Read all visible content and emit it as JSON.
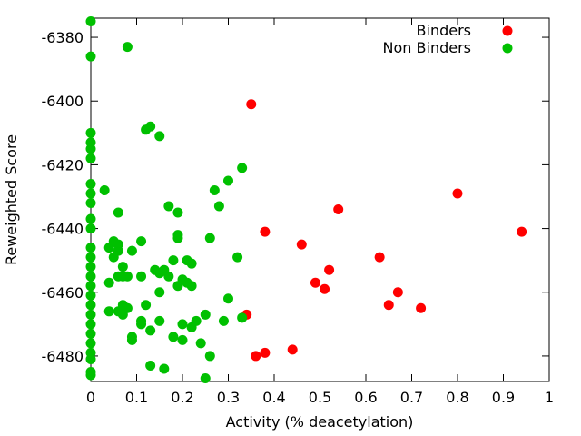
{
  "chart_data": {
    "type": "scatter",
    "xlabel": "Activity (% deacetylation)",
    "ylabel": "Reweighted Score",
    "xlim": [
      0,
      1
    ],
    "ylim": [
      -6488,
      -6374
    ],
    "xticks": [
      "0",
      "0.1",
      "0.2",
      "0.3",
      "0.4",
      "0.5",
      "0.6",
      "0.7",
      "0.8",
      "0.9",
      "1"
    ],
    "yticks": [
      "-6380",
      "-6400",
      "-6420",
      "-6440",
      "-6460",
      "-6480"
    ],
    "grid": false,
    "legend_position": "top-right",
    "series": [
      {
        "name": "Binders",
        "color": "#ff0000",
        "points": [
          [
            0.35,
            -6401
          ],
          [
            0.38,
            -6441
          ],
          [
            0.46,
            -6445
          ],
          [
            0.54,
            -6434
          ],
          [
            0.8,
            -6429
          ],
          [
            0.94,
            -6441
          ],
          [
            0.63,
            -6449
          ],
          [
            0.52,
            -6453
          ],
          [
            0.49,
            -6457
          ],
          [
            0.51,
            -6459
          ],
          [
            0.67,
            -6460
          ],
          [
            0.65,
            -6464
          ],
          [
            0.72,
            -6465
          ],
          [
            0.34,
            -6467
          ],
          [
            0.36,
            -6480
          ],
          [
            0.38,
            -6479
          ],
          [
            0.44,
            -6478
          ]
        ]
      },
      {
        "name": "Non Binders",
        "color": "#00c000",
        "points": [
          [
            0,
            -6375
          ],
          [
            0,
            -6386
          ],
          [
            0,
            -6410
          ],
          [
            0,
            -6413
          ],
          [
            0,
            -6415
          ],
          [
            0,
            -6418
          ],
          [
            0,
            -6426
          ],
          [
            0,
            -6429
          ],
          [
            0,
            -6432
          ],
          [
            0,
            -6437
          ],
          [
            0,
            -6440
          ],
          [
            0,
            -6446
          ],
          [
            0,
            -6449
          ],
          [
            0,
            -6452
          ],
          [
            0,
            -6455
          ],
          [
            0,
            -6458
          ],
          [
            0,
            -6461
          ],
          [
            0,
            -6464
          ],
          [
            0,
            -6467
          ],
          [
            0,
            -6470
          ],
          [
            0,
            -6473
          ],
          [
            0,
            -6476
          ],
          [
            0,
            -6479
          ],
          [
            0,
            -6481
          ],
          [
            0,
            -6485
          ],
          [
            0,
            -6486
          ],
          [
            0.08,
            -6383
          ],
          [
            0.12,
            -6409
          ],
          [
            0.13,
            -6408
          ],
          [
            0.15,
            -6411
          ],
          [
            0.33,
            -6421
          ],
          [
            0.3,
            -6425
          ],
          [
            0.28,
            -6433
          ],
          [
            0.27,
            -6428
          ],
          [
            0.17,
            -6433
          ],
          [
            0.19,
            -6435
          ],
          [
            0.06,
            -6435
          ],
          [
            0.03,
            -6428
          ],
          [
            0.19,
            -6442
          ],
          [
            0.19,
            -6443
          ],
          [
            0.26,
            -6443
          ],
          [
            0.11,
            -6444
          ],
          [
            0.06,
            -6445
          ],
          [
            0.05,
            -6444
          ],
          [
            0.04,
            -6446
          ],
          [
            0.06,
            -6447
          ],
          [
            0.09,
            -6447
          ],
          [
            0.05,
            -6449
          ],
          [
            0.32,
            -6449
          ],
          [
            0.18,
            -6450
          ],
          [
            0.21,
            -6450
          ],
          [
            0.22,
            -6451
          ],
          [
            0.14,
            -6453
          ],
          [
            0.16,
            -6453
          ],
          [
            0.15,
            -6454
          ],
          [
            0.07,
            -6452
          ],
          [
            0.06,
            -6455
          ],
          [
            0.07,
            -6455
          ],
          [
            0.08,
            -6455
          ],
          [
            0.11,
            -6455
          ],
          [
            0.17,
            -6455
          ],
          [
            0.2,
            -6456
          ],
          [
            0.21,
            -6457
          ],
          [
            0.19,
            -6458
          ],
          [
            0.22,
            -6458
          ],
          [
            0.04,
            -6457
          ],
          [
            0.15,
            -6460
          ],
          [
            0.3,
            -6462
          ],
          [
            0.12,
            -6464
          ],
          [
            0.07,
            -6464
          ],
          [
            0.08,
            -6465
          ],
          [
            0.04,
            -6466
          ],
          [
            0.06,
            -6466
          ],
          [
            0.07,
            -6466
          ],
          [
            0.07,
            -6467
          ],
          [
            0.25,
            -6467
          ],
          [
            0.33,
            -6468
          ],
          [
            0.11,
            -6469
          ],
          [
            0.15,
            -6469
          ],
          [
            0.23,
            -6469
          ],
          [
            0.29,
            -6469
          ],
          [
            0.11,
            -6470
          ],
          [
            0.2,
            -6470
          ],
          [
            0.22,
            -6471
          ],
          [
            0.13,
            -6472
          ],
          [
            0.09,
            -6474
          ],
          [
            0.18,
            -6474
          ],
          [
            0.09,
            -6475
          ],
          [
            0.2,
            -6475
          ],
          [
            0.24,
            -6476
          ],
          [
            0.26,
            -6480
          ],
          [
            0.13,
            -6483
          ],
          [
            0.16,
            -6484
          ],
          [
            0.25,
            -6487
          ]
        ]
      }
    ]
  }
}
